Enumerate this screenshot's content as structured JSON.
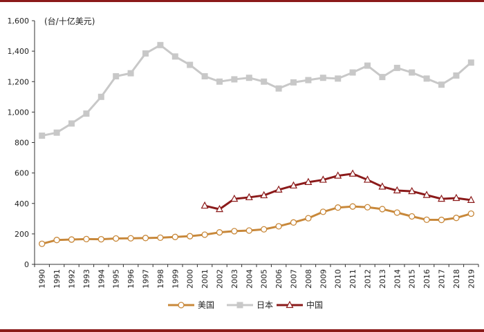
{
  "chart_data": {
    "type": "line",
    "title": "",
    "ylabel": "(台/十亿美元)",
    "xlabel": "",
    "ylim": [
      0,
      1600
    ],
    "yticks": [
      0,
      200,
      400,
      600,
      800,
      1000,
      1200,
      1400,
      1600
    ],
    "ytick_labels": [
      "0",
      "200",
      "400",
      "600",
      "800",
      "1,000",
      "1,200",
      "1,400",
      "1,600"
    ],
    "categories": [
      "1990",
      "1991",
      "1992",
      "1993",
      "1994",
      "1995",
      "1996",
      "1997",
      "1998",
      "1999",
      "2000",
      "2001",
      "2002",
      "2003",
      "2004",
      "2005",
      "2006",
      "2007",
      "2008",
      "2009",
      "2010",
      "2011",
      "2012",
      "2013",
      "2014",
      "2015",
      "2016",
      "2017",
      "2018",
      "2019"
    ],
    "grid": false,
    "legend_position": "bottom",
    "series": [
      {
        "name": "美国",
        "color": "#c8883a",
        "marker": "circle",
        "values": [
          135,
          160,
          163,
          166,
          165,
          170,
          171,
          173,
          175,
          180,
          185,
          195,
          210,
          218,
          222,
          230,
          250,
          275,
          303,
          345,
          373,
          380,
          375,
          363,
          340,
          315,
          293,
          292,
          305,
          333
        ]
      },
      {
        "name": "日本",
        "color": "#c8c8c8",
        "marker": "square",
        "values": [
          845,
          865,
          925,
          990,
          1100,
          1235,
          1255,
          1385,
          1440,
          1365,
          1310,
          1235,
          1200,
          1215,
          1225,
          1200,
          1155,
          1195,
          1210,
          1225,
          1220,
          1260,
          1305,
          1230,
          1290,
          1260,
          1220,
          1180,
          1240,
          1325
        ]
      },
      {
        "name": "中国",
        "color": "#8b1a1a",
        "marker": "triangle",
        "values": [
          null,
          null,
          null,
          null,
          null,
          null,
          null,
          null,
          null,
          null,
          null,
          385,
          362,
          430,
          440,
          453,
          490,
          517,
          540,
          555,
          582,
          595,
          555,
          510,
          485,
          480,
          455,
          430,
          435,
          422
        ]
      }
    ]
  }
}
